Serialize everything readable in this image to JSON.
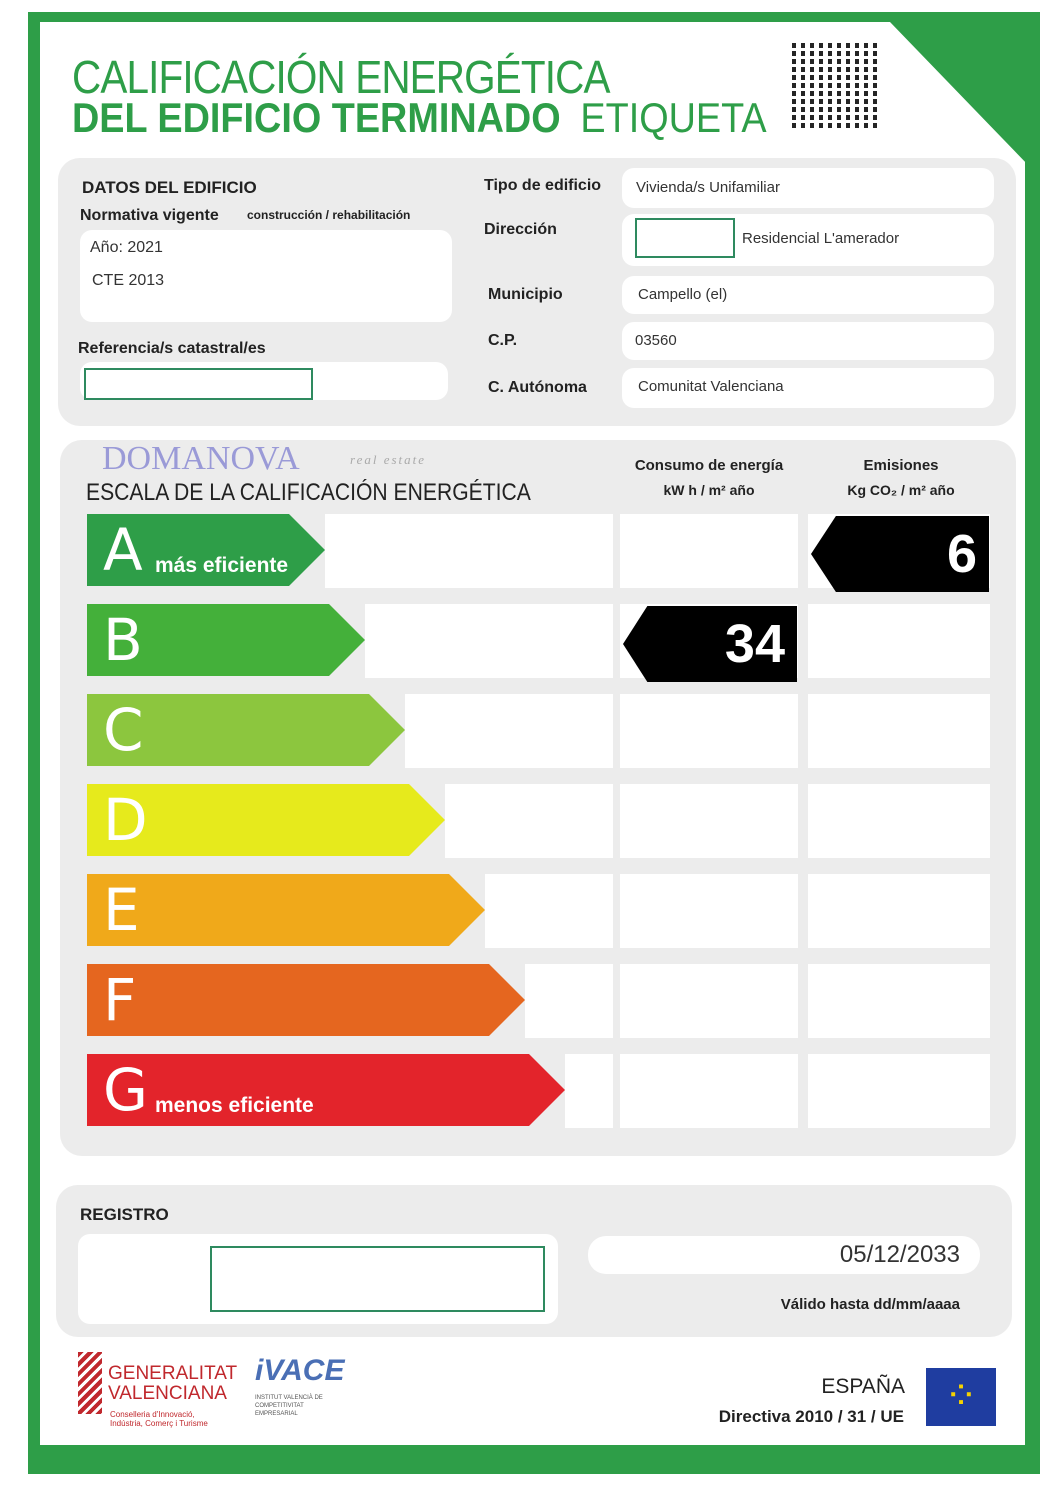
{
  "header": {
    "title_line1": "CALIFICACIÓN ENERGÉTICA",
    "title_line2": "DEL EDIFICIO  TERMINADO",
    "title_suffix": "ETIQUETA"
  },
  "datos": {
    "heading": "DATOS DEL EDIFICIO",
    "normativa_label": "Normativa vigente",
    "normativa_sub": "construcción / rehabilitación",
    "anio": "Año: 2021",
    "normativa": "CTE 2013",
    "referencia_label": "Referencia/s catastral/es",
    "referencia": ""
  },
  "fields": [
    {
      "label": "Tipo de edificio",
      "value": "Vivienda/s Unifamiliar"
    },
    {
      "label": "Dirección",
      "value": "Residencial L'amerador"
    },
    {
      "label": "Municipio",
      "value": "Campello (el)"
    },
    {
      "label": "C.P.",
      "value": "03560"
    },
    {
      "label": "C. Autónoma",
      "value": "Comunitat Valenciana"
    }
  ],
  "scale": {
    "heading": "ESCALA DE LA CALIFICACIÓN ENERGÉTICA",
    "watermark": "DOMANOVA",
    "watermark_sub": "real estate",
    "col_consumo": "Consumo de energía",
    "col_consumo_unit": "kW h / m² año",
    "col_emisiones": "Emisiones",
    "col_emisiones_unit": "Kg CO₂ / m² año",
    "classes": [
      {
        "letter": "A",
        "label": "más eficiente",
        "color": "#2e9e48"
      },
      {
        "letter": "B",
        "label": "",
        "color": "#44b03a"
      },
      {
        "letter": "C",
        "label": "",
        "color": "#8cc63e"
      },
      {
        "letter": "D",
        "label": "",
        "color": "#e6ea1c"
      },
      {
        "letter": "E",
        "label": "",
        "color": "#f0a91a"
      },
      {
        "letter": "F",
        "label": "",
        "color": "#e5661f"
      },
      {
        "letter": "G",
        "label": "menos eficiente",
        "color": "#e3242b"
      }
    ],
    "consumo": {
      "class": "B",
      "value": "34"
    },
    "emisiones": {
      "class": "A",
      "value": "6"
    }
  },
  "registro": {
    "heading": "REGISTRO",
    "valid_date": "05/12/2033",
    "valid_label": "Válido hasta dd/mm/aaaa"
  },
  "footer": {
    "gv_line1": "GENERALITAT",
    "gv_line2": "VALENCIANA",
    "gv_sub1": "Conselleria d'Innovació,",
    "gv_sub2": "Indústria, Comerç i Turisme",
    "ivace": "iVACE",
    "ivace_sub": "INSTITUT VALENCIÀ DE COMPETITIVITAT EMPRESARIAL",
    "country": "ESPAÑA",
    "directive": "Directiva 2010 / 31 / UE"
  }
}
